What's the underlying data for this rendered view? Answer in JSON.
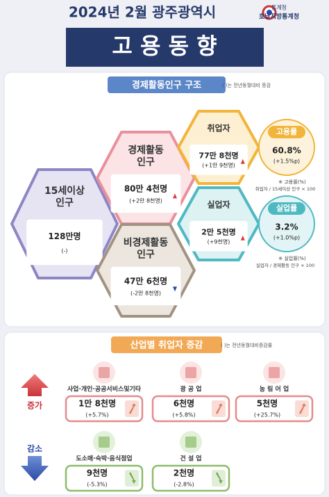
{
  "header": {
    "title": "2024년 2월 광주광역시",
    "subtitle": "고 용 동 향",
    "org": [
      "통계청",
      "호남지방통계청"
    ]
  },
  "structure": {
    "title": "경제활동인구 구조",
    "note": "( )는 전년동월대비 증감",
    "nodes": [
      {
        "label": [
          "15세이상",
          "인구"
        ],
        "value": "128만명",
        "change": "(-)"
      },
      {
        "label": [
          "경제활동",
          "인구"
        ],
        "value": "80만 4천명",
        "change": "(+2만 8천명)"
      },
      {
        "label": [
          "비경제활동",
          "인구"
        ],
        "value": "47만 6천명",
        "change": "(-2만 8천명)"
      },
      {
        "label": [
          "취업자"
        ],
        "value": "77만 8천명",
        "change": "(+1만 9천명)"
      },
      {
        "label": [
          "실업자"
        ],
        "value": "2만 5천명",
        "change": "(+9천명)"
      }
    ],
    "rates": [
      {
        "label": "고용률",
        "value": "60.8%",
        "change": "(+1.5%p)",
        "formula": [
          "※ 고용률(%)",
          "취업자 / 15세이상 인구 × 100"
        ]
      },
      {
        "label": "실업률",
        "value": "3.2%",
        "change": "(+1.0%p)",
        "formula": [
          "※ 실업률(%)",
          "실업자 / 경제활동 인구 × 100"
        ]
      }
    ]
  },
  "industry": {
    "title": "산업별 취업자 증감",
    "note": "( )는 전년동월대비증감률",
    "groups": [
      {
        "label": "증가",
        "items": [
          {
            "name": "사업·개인·공공서비스및기타",
            "value": "1만 8천명",
            "change": "(+5.7%)"
          },
          {
            "name": "광 공 업",
            "value": "6천명",
            "change": "(+5.8%)"
          },
          {
            "name": "농 림 어 업",
            "value": "5천명",
            "change": "(+25.7%)"
          }
        ]
      },
      {
        "label": "감소",
        "items": [
          {
            "name": "도소매·숙박·음식점업",
            "value": "9천명",
            "change": "(-5.3%)"
          },
          {
            "name": "건 설 업",
            "value": "2천명",
            "change": "(-2.8%)"
          }
        ]
      }
    ]
  }
}
